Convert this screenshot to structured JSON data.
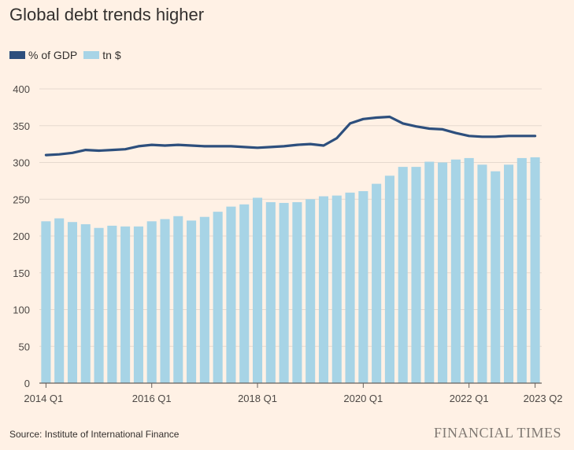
{
  "title": "Global debt trends higher",
  "source": "Source: Institute of International Finance",
  "brand": "FINANCIAL TIMES",
  "colors": {
    "line": "#2d4f7d",
    "bars": "#a7d4e6",
    "grid": "#e6d9ce",
    "axis": "#66605c",
    "background": "#fff1e5"
  },
  "legend": [
    {
      "label": "% of GDP",
      "color": "#2d4f7d"
    },
    {
      "label": "tn $",
      "color": "#a7d4e6"
    }
  ],
  "chart_data": {
    "type": "bar",
    "title": "Global debt trends higher",
    "ylim": [
      0,
      400
    ],
    "yticks": [
      0,
      50,
      100,
      150,
      200,
      250,
      300,
      350,
      400
    ],
    "categories": [
      "2014 Q1",
      "2014 Q2",
      "2014 Q3",
      "2014 Q4",
      "2015 Q1",
      "2015 Q2",
      "2015 Q3",
      "2015 Q4",
      "2016 Q1",
      "2016 Q2",
      "2016 Q3",
      "2016 Q4",
      "2017 Q1",
      "2017 Q2",
      "2017 Q3",
      "2017 Q4",
      "2018 Q1",
      "2018 Q2",
      "2018 Q3",
      "2018 Q4",
      "2019 Q1",
      "2019 Q2",
      "2019 Q3",
      "2019 Q4",
      "2020 Q1",
      "2020 Q2",
      "2020 Q3",
      "2020 Q4",
      "2021 Q1",
      "2021 Q2",
      "2021 Q3",
      "2021 Q4",
      "2022 Q1",
      "2022 Q2",
      "2022 Q3",
      "2022 Q4",
      "2023 Q1",
      "2023 Q2"
    ],
    "xticks": [
      {
        "index": 0,
        "label": "2014 Q1"
      },
      {
        "index": 8,
        "label": "2016 Q1"
      },
      {
        "index": 16,
        "label": "2018 Q1"
      },
      {
        "index": 24,
        "label": "2020 Q1"
      },
      {
        "index": 32,
        "label": "2022 Q1"
      },
      {
        "index": 37,
        "label": "2023 Q2"
      }
    ],
    "series": [
      {
        "name": "tn $",
        "kind": "bar",
        "values": [
          220,
          224,
          219,
          216,
          211,
          214,
          213,
          213,
          220,
          223,
          227,
          221,
          226,
          233,
          240,
          243,
          252,
          246,
          245,
          246,
          250,
          254,
          255,
          259,
          261,
          271,
          282,
          294,
          294,
          301,
          300,
          304,
          306,
          297,
          288,
          297,
          306,
          307
        ]
      },
      {
        "name": "% of GDP",
        "kind": "line",
        "values": [
          310,
          311,
          313,
          317,
          316,
          317,
          318,
          322,
          324,
          323,
          324,
          323,
          322,
          322,
          322,
          321,
          320,
          321,
          322,
          324,
          325,
          323,
          333,
          353,
          359,
          361,
          362,
          353,
          349,
          346,
          345,
          340,
          336,
          335,
          335,
          336,
          336,
          336
        ]
      }
    ]
  }
}
